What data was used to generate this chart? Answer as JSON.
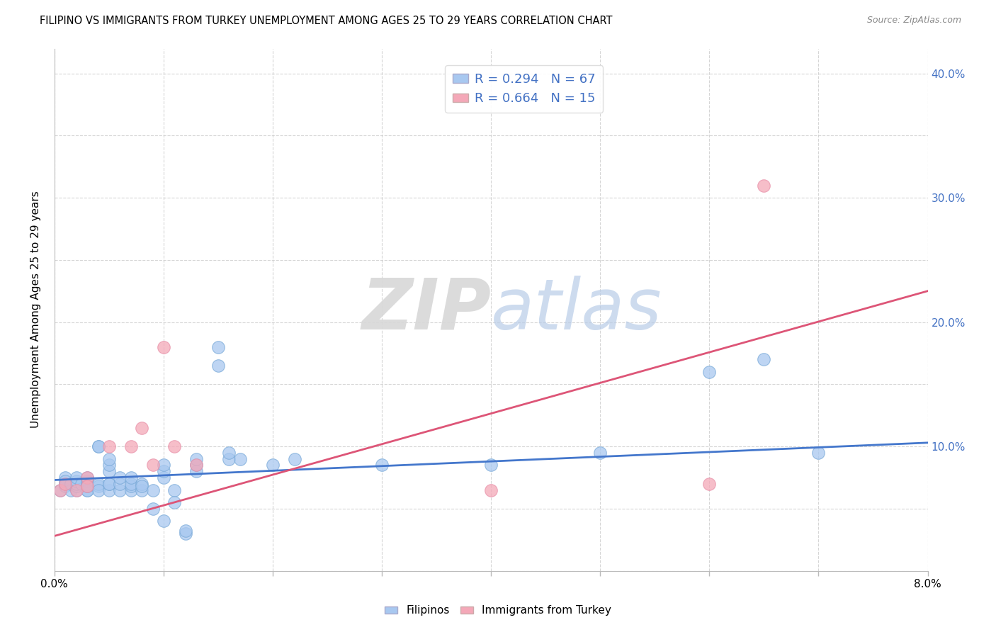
{
  "title": "FILIPINO VS IMMIGRANTS FROM TURKEY UNEMPLOYMENT AMONG AGES 25 TO 29 YEARS CORRELATION CHART",
  "source": "Source: ZipAtlas.com",
  "ylabel": "Unemployment Among Ages 25 to 29 years",
  "xlim": [
    0.0,
    0.08
  ],
  "ylim": [
    0.0,
    0.42
  ],
  "xticks": [
    0.0,
    0.01,
    0.02,
    0.03,
    0.04,
    0.05,
    0.06,
    0.07,
    0.08
  ],
  "yticks": [
    0.0,
    0.05,
    0.1,
    0.15,
    0.2,
    0.25,
    0.3,
    0.35,
    0.4
  ],
  "right_ytick_labels": [
    "",
    "",
    "10.0%",
    "",
    "20.0%",
    "",
    "30.0%",
    "",
    "40.0%"
  ],
  "filipino_color": "#a8c8f0",
  "turkey_color": "#f4a8b8",
  "filipino_line_color": "#4477cc",
  "turkey_line_color": "#dd5577",
  "R_filipino": 0.294,
  "N_filipino": 67,
  "R_turkey": 0.664,
  "N_turkey": 15,
  "watermark_zip": "ZIP",
  "watermark_atlas": "atlas",
  "filipinos_scatter_x": [
    0.0005,
    0.001,
    0.001,
    0.001,
    0.001,
    0.0015,
    0.0015,
    0.002,
    0.002,
    0.002,
    0.002,
    0.002,
    0.0025,
    0.003,
    0.003,
    0.003,
    0.003,
    0.003,
    0.003,
    0.003,
    0.004,
    0.004,
    0.004,
    0.004,
    0.004,
    0.005,
    0.005,
    0.005,
    0.005,
    0.005,
    0.005,
    0.006,
    0.006,
    0.006,
    0.007,
    0.007,
    0.007,
    0.007,
    0.008,
    0.008,
    0.008,
    0.009,
    0.009,
    0.01,
    0.01,
    0.01,
    0.01,
    0.011,
    0.011,
    0.012,
    0.012,
    0.013,
    0.013,
    0.013,
    0.015,
    0.015,
    0.016,
    0.016,
    0.017,
    0.02,
    0.022,
    0.03,
    0.04,
    0.05,
    0.06,
    0.065,
    0.07
  ],
  "filipinos_scatter_y": [
    0.065,
    0.07,
    0.075,
    0.068,
    0.072,
    0.065,
    0.07,
    0.065,
    0.068,
    0.07,
    0.072,
    0.075,
    0.07,
    0.065,
    0.068,
    0.07,
    0.072,
    0.075,
    0.065,
    0.068,
    0.1,
    0.1,
    0.068,
    0.07,
    0.065,
    0.065,
    0.07,
    0.08,
    0.085,
    0.09,
    0.07,
    0.065,
    0.07,
    0.075,
    0.065,
    0.068,
    0.07,
    0.075,
    0.065,
    0.07,
    0.068,
    0.065,
    0.05,
    0.04,
    0.075,
    0.08,
    0.085,
    0.065,
    0.055,
    0.03,
    0.032,
    0.08,
    0.085,
    0.09,
    0.165,
    0.18,
    0.09,
    0.095,
    0.09,
    0.085,
    0.09,
    0.085,
    0.085,
    0.095,
    0.16,
    0.17,
    0.095
  ],
  "turkey_scatter_x": [
    0.0005,
    0.001,
    0.002,
    0.003,
    0.003,
    0.005,
    0.007,
    0.008,
    0.009,
    0.01,
    0.011,
    0.013,
    0.04,
    0.06,
    0.065
  ],
  "turkey_scatter_y": [
    0.065,
    0.07,
    0.065,
    0.075,
    0.068,
    0.1,
    0.1,
    0.115,
    0.085,
    0.18,
    0.1,
    0.085,
    0.065,
    0.07,
    0.31
  ],
  "fil_line_x0": 0.0,
  "fil_line_y0": 0.073,
  "fil_line_x1": 0.08,
  "fil_line_y1": 0.103,
  "tur_line_x0": 0.0,
  "tur_line_y0": 0.028,
  "tur_line_x1": 0.08,
  "tur_line_y1": 0.225,
  "background_color": "#ffffff",
  "grid_color": "#cccccc"
}
